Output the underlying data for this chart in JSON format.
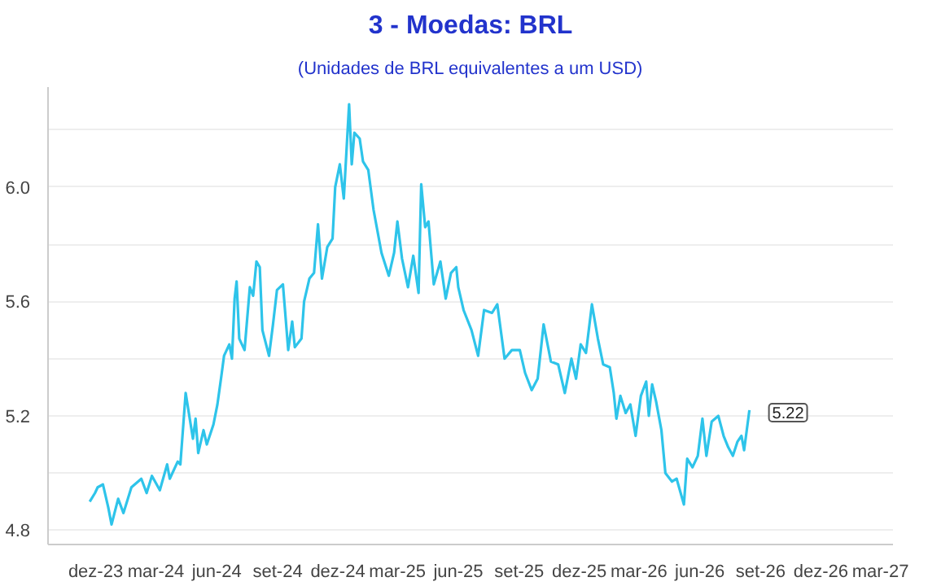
{
  "chart_data": {
    "type": "line",
    "title": "3 - Moedas: BRL",
    "subtitle": "(Unidades de BRL equivalentes a um USD)",
    "x": [
      "2023-11-22",
      "2023-11-30",
      "2023-12-04",
      "2023-12-12",
      "2023-12-20",
      "2023-12-25",
      "2024-01-04",
      "2024-01-12",
      "2024-01-24",
      "2024-02-08",
      "2024-02-16",
      "2024-02-24",
      "2024-03-07",
      "2024-03-18",
      "2024-03-22",
      "2024-04-03",
      "2024-04-07",
      "2024-04-15",
      "2024-04-26",
      "2024-04-30",
      "2024-05-04",
      "2024-05-12",
      "2024-05-17",
      "2024-05-27",
      "2024-06-02",
      "2024-06-08",
      "2024-06-12",
      "2024-06-20",
      "2024-06-24",
      "2024-06-28",
      "2024-07-01",
      "2024-07-05",
      "2024-07-13",
      "2024-07-21",
      "2024-07-26",
      "2024-07-31",
      "2024-08-05",
      "2024-08-09",
      "2024-08-19",
      "2024-08-25",
      "2024-08-31",
      "2024-09-09",
      "2024-09-17",
      "2024-09-23",
      "2024-09-27",
      "2024-10-07",
      "2024-10-11",
      "2024-10-19",
      "2024-10-26",
      "2024-11-01",
      "2024-11-07",
      "2024-11-15",
      "2024-11-23",
      "2024-11-27",
      "2024-12-04",
      "2024-12-10",
      "2024-12-18",
      "2024-12-22",
      "2024-12-26",
      "2025-01-03",
      "2025-01-08",
      "2025-01-16",
      "2025-01-24",
      "2025-02-05",
      "2025-02-16",
      "2025-02-24",
      "2025-03-01",
      "2025-03-08",
      "2025-03-17",
      "2025-03-25",
      "2025-04-02",
      "2025-04-06",
      "2025-04-12",
      "2025-04-17",
      "2025-04-25",
      "2025-05-05",
      "2025-05-13",
      "2025-05-21",
      "2025-05-29",
      "2025-06-01",
      "2025-06-09",
      "2025-06-21",
      "2025-07-01",
      "2025-07-10",
      "2025-07-22",
      "2025-07-30",
      "2025-08-10",
      "2025-08-21",
      "2025-09-02",
      "2025-09-10",
      "2025-09-20",
      "2025-09-29",
      "2025-10-08",
      "2025-10-19",
      "2025-10-30",
      "2025-11-09",
      "2025-11-19",
      "2025-11-26",
      "2025-12-03",
      "2025-12-11",
      "2025-12-20",
      "2025-12-29",
      "2026-01-06",
      "2026-01-16",
      "2026-01-22",
      "2026-01-26",
      "2026-02-01",
      "2026-02-09",
      "2026-02-16",
      "2026-02-24",
      "2026-03-04",
      "2026-03-12",
      "2026-03-16",
      "2026-03-21",
      "2026-03-27",
      "2026-04-04",
      "2026-04-10",
      "2026-04-20",
      "2026-04-27",
      "2026-05-08",
      "2026-05-13",
      "2026-05-21",
      "2026-05-29",
      "2026-06-05",
      "2026-06-11",
      "2026-06-19",
      "2026-06-29",
      "2026-07-07",
      "2026-07-14",
      "2026-07-21",
      "2026-07-28",
      "2026-08-03",
      "2026-08-07",
      "2026-08-15"
    ],
    "series": [
      {
        "color": "#2ec4ea",
        "values": [
          4.9,
          4.93,
          4.95,
          4.96,
          4.88,
          4.82,
          4.91,
          4.86,
          4.95,
          4.98,
          4.93,
          4.99,
          4.94,
          5.03,
          4.98,
          5.04,
          5.03,
          5.28,
          5.12,
          5.19,
          5.07,
          5.15,
          5.1,
          5.17,
          5.24,
          5.34,
          5.41,
          5.45,
          5.4,
          5.61,
          5.67,
          5.47,
          5.43,
          5.65,
          5.62,
          5.74,
          5.72,
          5.5,
          5.41,
          5.52,
          5.64,
          5.66,
          5.43,
          5.53,
          5.44,
          5.47,
          5.6,
          5.68,
          5.7,
          5.87,
          5.68,
          5.79,
          5.82,
          6.0,
          6.08,
          5.96,
          6.29,
          6.08,
          6.19,
          6.17,
          6.09,
          6.06,
          5.92,
          5.77,
          5.69,
          5.77,
          5.88,
          5.75,
          5.65,
          5.76,
          5.63,
          6.01,
          5.86,
          5.88,
          5.66,
          5.74,
          5.61,
          5.7,
          5.72,
          5.65,
          5.57,
          5.5,
          5.41,
          5.57,
          5.56,
          5.59,
          5.4,
          5.43,
          5.43,
          5.35,
          5.29,
          5.33,
          5.52,
          5.39,
          5.38,
          5.28,
          5.4,
          5.33,
          5.45,
          5.42,
          5.59,
          5.47,
          5.38,
          5.37,
          5.28,
          5.19,
          5.27,
          5.21,
          5.24,
          5.13,
          5.27,
          5.32,
          5.2,
          5.31,
          5.25,
          5.15,
          5.0,
          4.97,
          4.98,
          4.89,
          5.05,
          5.02,
          5.06,
          5.19,
          5.06,
          5.18,
          5.2,
          5.13,
          5.09,
          5.06,
          5.11,
          5.13,
          5.08,
          5.22
        ]
      }
    ],
    "xlim": [
      "2023-09-20",
      "2027-03-20"
    ],
    "xticks": [
      {
        "value": "2023-12-01",
        "label": "dez-23"
      },
      {
        "value": "2024-03-01",
        "label": "mar-24"
      },
      {
        "value": "2024-06-01",
        "label": "jun-24"
      },
      {
        "value": "2024-09-01",
        "label": "set-24"
      },
      {
        "value": "2024-12-01",
        "label": "dez-24"
      },
      {
        "value": "2025-03-01",
        "label": "mar-25"
      },
      {
        "value": "2025-06-01",
        "label": "jun-25"
      },
      {
        "value": "2025-09-01",
        "label": "set-25"
      },
      {
        "value": "2025-12-01",
        "label": "dez-25"
      },
      {
        "value": "2026-03-01",
        "label": "mar-26"
      },
      {
        "value": "2026-06-01",
        "label": "jun-26"
      },
      {
        "value": "2026-09-01",
        "label": "set-26"
      },
      {
        "value": "2026-12-01",
        "label": "dez-26"
      },
      {
        "value": "2027-03-01",
        "label": "mar-27"
      }
    ],
    "ylim": [
      4.75,
      6.35
    ],
    "yticks": [
      4.8,
      {
        "value": 5.0,
        "label": null
      },
      5.2,
      {
        "value": 5.4,
        "label": null
      },
      5.6,
      {
        "value": 5.8,
        "label": null
      },
      {
        "value": 6.0,
        "label": "6.0"
      },
      {
        "value": 6.2,
        "label": null
      }
    ],
    "grid": "y",
    "marker": "none",
    "line_style": "solid",
    "annotations": [
      {
        "text": "5.22",
        "x": "2026-08-15",
        "y": 5.22
      }
    ]
  }
}
